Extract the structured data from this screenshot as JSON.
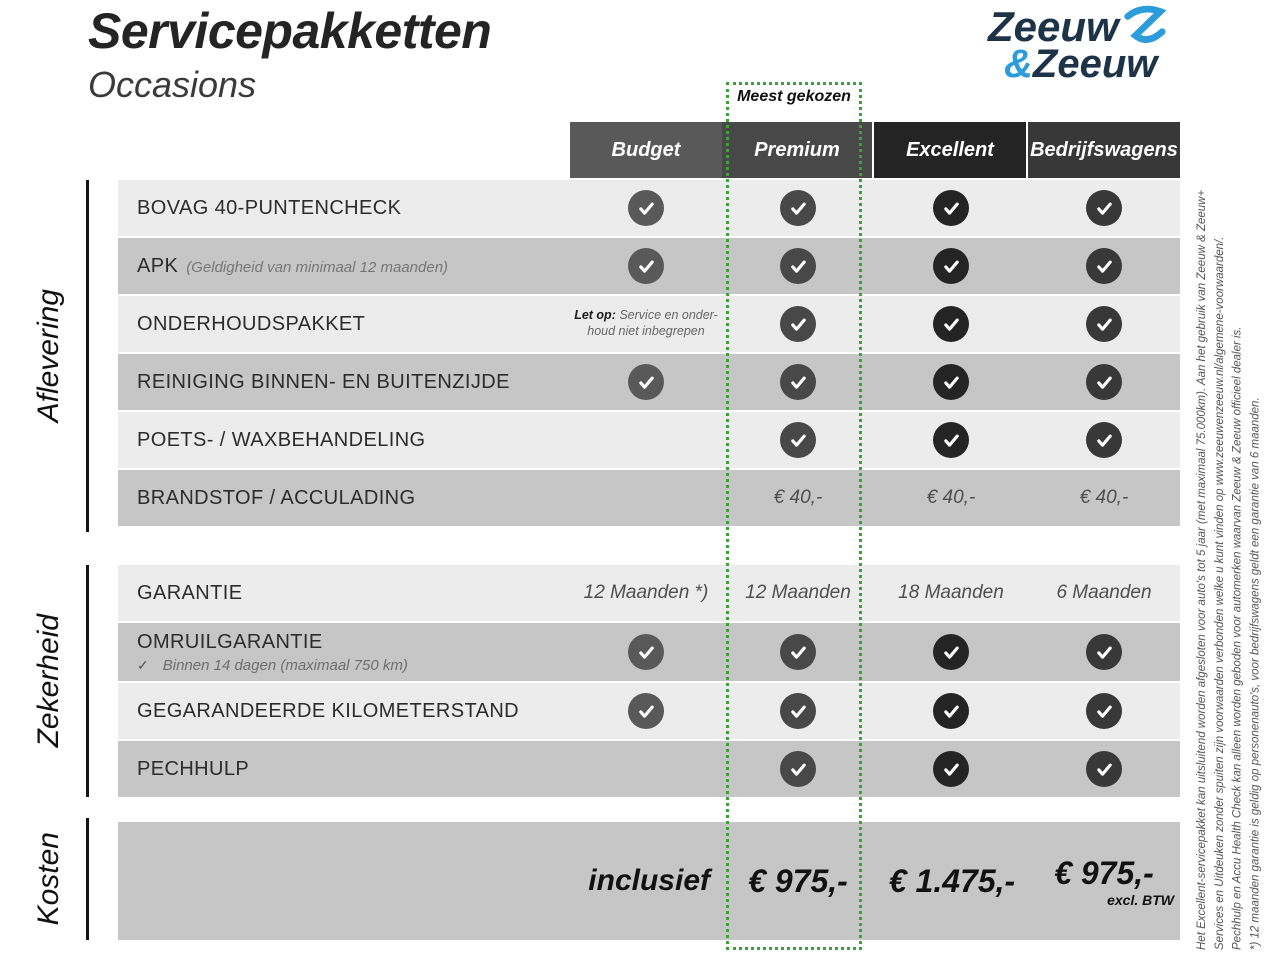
{
  "header": {
    "title": "Servicepakketten",
    "subtitle": "Occasions"
  },
  "logo": {
    "word1": "Zeeuw",
    "amp": "&",
    "word2": "Zeeuw",
    "navy": "#1d3348",
    "blue": "#2d9cdb"
  },
  "highlight": {
    "label": "Meest gekozen",
    "border_color": "#3aa23a"
  },
  "palette": {
    "row_light": "#ececec",
    "row_dark": "#c6c6c6"
  },
  "columns": [
    {
      "id": "budget",
      "label": "Budget",
      "color": "#595959"
    },
    {
      "id": "premium",
      "label": "Premium",
      "color": "#484848"
    },
    {
      "id": "excellent",
      "label": "Excellent",
      "color": "#242424"
    },
    {
      "id": "bedrijfswagens",
      "label": "Bedrijfswagens",
      "color": "#383838"
    }
  ],
  "sections": [
    {
      "id": "aflevering",
      "label": "Aflevering"
    },
    {
      "id": "zekerheid",
      "label": "Zekerheid"
    },
    {
      "id": "kosten",
      "label": "Kosten"
    }
  ],
  "rows": [
    {
      "section": "aflevering",
      "shade": "light",
      "label": "BOVAG 40-PUNTENCHECK",
      "cells": [
        {
          "t": "check"
        },
        {
          "t": "check"
        },
        {
          "t": "check"
        },
        {
          "t": "check"
        }
      ]
    },
    {
      "section": "aflevering",
      "shade": "dark",
      "label": "APK",
      "sub_inline": "(Geldigheid van minimaal 12 maanden)",
      "cells": [
        {
          "t": "check"
        },
        {
          "t": "check"
        },
        {
          "t": "check"
        },
        {
          "t": "check"
        }
      ]
    },
    {
      "section": "aflevering",
      "shade": "light",
      "label": "ONDERHOUDSPAKKET",
      "cells": [
        {
          "t": "note",
          "bold": "Let op:",
          "line1": "Service en onder-",
          "line2": "houd niet inbegrepen"
        },
        {
          "t": "check"
        },
        {
          "t": "check"
        },
        {
          "t": "check"
        }
      ]
    },
    {
      "section": "aflevering",
      "shade": "dark",
      "label": "REINIGING BINNEN- EN BUITENZIJDE",
      "cells": [
        {
          "t": "check"
        },
        {
          "t": "check"
        },
        {
          "t": "check"
        },
        {
          "t": "check"
        }
      ]
    },
    {
      "section": "aflevering",
      "shade": "light",
      "label": "POETS- / WAXBEHANDELING",
      "cells": [
        null,
        {
          "t": "check"
        },
        {
          "t": "check"
        },
        {
          "t": "check"
        }
      ]
    },
    {
      "section": "aflevering",
      "shade": "dark",
      "label": "BRANDSTOF / ACCULADING",
      "cells": [
        null,
        {
          "t": "text",
          "v": "€ 40,-"
        },
        {
          "t": "text",
          "v": "€ 40,-"
        },
        {
          "t": "text",
          "v": "€ 40,-"
        }
      ]
    },
    {
      "section": "zekerheid",
      "shade": "light",
      "label": "GARANTIE",
      "cells": [
        {
          "t": "text",
          "v": "12 Maanden *)"
        },
        {
          "t": "text",
          "v": "12 Maanden"
        },
        {
          "t": "text",
          "v": "18 Maanden"
        },
        {
          "t": "text",
          "v": "6 Maanden"
        }
      ]
    },
    {
      "section": "zekerheid",
      "shade": "dark",
      "tall": true,
      "label": "OMRUILGARANTIE",
      "sub_check": "✓",
      "sub_block": "Binnen 14 dagen (maximaal 750 km)",
      "cells": [
        {
          "t": "check"
        },
        {
          "t": "check"
        },
        {
          "t": "check"
        },
        {
          "t": "check"
        }
      ]
    },
    {
      "section": "zekerheid",
      "shade": "light",
      "label": "GEGARANDEERDE KILOMETERSTAND",
      "cells": [
        {
          "t": "check"
        },
        {
          "t": "check"
        },
        {
          "t": "check"
        },
        {
          "t": "check"
        }
      ]
    },
    {
      "section": "zekerheid",
      "shade": "dark",
      "label": "PECHHULP",
      "cells": [
        null,
        {
          "t": "check"
        },
        {
          "t": "check"
        },
        {
          "t": "check"
        }
      ]
    }
  ],
  "kosten": {
    "budget": "inclusief",
    "premium": "€ 975,-",
    "excellent": "€ 1.475,-",
    "bedrijfswagens": "€ 975,-",
    "bedrijfswagens_note": "excl. BTW"
  },
  "disclaimer": {
    "lines": [
      "Het Excellent-servicepakket kan uitsluitend worden afgesloten voor auto's tot 5 jaar (met maximaal 75.000km). Aan het gebruik van Zeeuw & Zeeuw+",
      "Services en Uitdeuken zonder spuiten zijn voorwaarden verbonden welke u kunt vinden op www.zeeuwenzeeuw.nl/algemene-voorwaarden/.",
      "Pechhulp en Accu Health Check kan alleen worden geboden voor automerken waarvan Zeeuw & Zeeuw officieel dealer is.",
      "*) 12 maanden garantie is geldig op personenauto's, voor bedrijfswagens geldt een garantie van 6 maanden."
    ]
  }
}
